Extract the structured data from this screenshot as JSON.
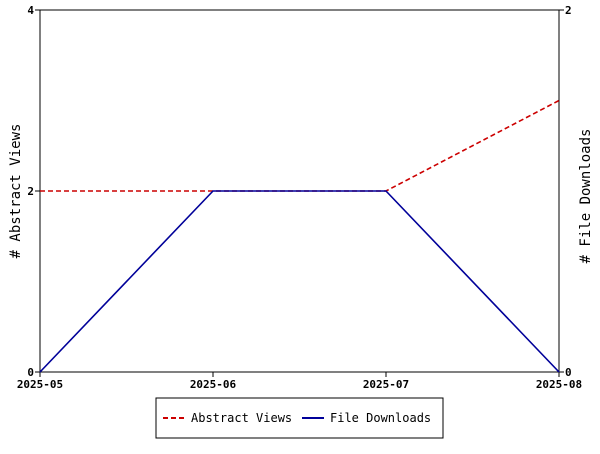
{
  "chart_data": {
    "type": "line",
    "title": "",
    "xlabel": "",
    "ylabel_left": "# Abstract Views",
    "ylabel_right": "# File Downloads",
    "x": [
      "2025-05",
      "2025-06",
      "2025-07",
      "2025-08"
    ],
    "ylim_left": [
      0,
      4
    ],
    "ylim_right": [
      0,
      2
    ],
    "yticks_left": [
      0,
      2,
      4
    ],
    "yticks_right": [
      0,
      2
    ],
    "grid": false,
    "legend_position": "bottom-center",
    "series": [
      {
        "name": "Abstract Views",
        "axis": "left",
        "values": [
          2,
          2,
          2,
          3
        ],
        "color": "#cc0000",
        "style": "dashed"
      },
      {
        "name": "File Downloads",
        "axis": "right",
        "values": [
          0,
          1,
          1,
          0
        ],
        "color": "#000099",
        "style": "solid"
      }
    ]
  }
}
